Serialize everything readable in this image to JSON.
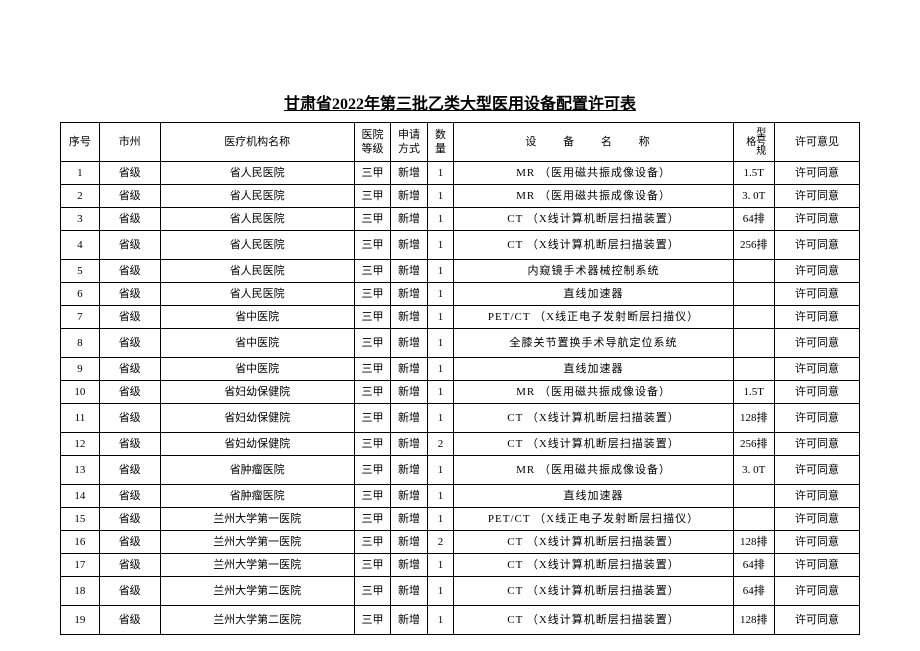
{
  "title": "甘肃省2022年第三批乙类大型医用设备配置许可表",
  "columns": {
    "seq": "序号",
    "city": "市州",
    "org": "医疗机构名称",
    "level": "医院等级",
    "apply": "申请方式",
    "qty": "数量",
    "device": "设 备 名 称",
    "spec": "型号规格",
    "opinion": "许可意见"
  },
  "rows": [
    {
      "seq": "1",
      "city": "省级",
      "org": "省人民医院",
      "level": "三甲",
      "apply": "新增",
      "qty": "1",
      "device": "MR （医用磁共振成像设备）",
      "spec": "1.5T",
      "opinion": "许可同意",
      "tall": false
    },
    {
      "seq": "2",
      "city": "省级",
      "org": "省人民医院",
      "level": "三甲",
      "apply": "新增",
      "qty": "1",
      "device": "MR （医用磁共振成像设备）",
      "spec": "3. 0T",
      "opinion": "许可同意",
      "tall": false
    },
    {
      "seq": "3",
      "city": "省级",
      "org": "省人民医院",
      "level": "三甲",
      "apply": "新增",
      "qty": "1",
      "device": "CT （X线计算机断层扫描装置）",
      "spec": "64排",
      "opinion": "许可同意",
      "tall": false
    },
    {
      "seq": "4",
      "city": "省级",
      "org": "省人民医院",
      "level": "三甲",
      "apply": "新增",
      "qty": "1",
      "device": "CT （X线计算机断层扫描装置）",
      "spec": "256排",
      "opinion": "许可同意",
      "tall": true
    },
    {
      "seq": "5",
      "city": "省级",
      "org": "省人民医院",
      "level": "三甲",
      "apply": "新增",
      "qty": "1",
      "device": "内窥镜手术器械控制系统",
      "spec": "",
      "opinion": "许可同意",
      "tall": false
    },
    {
      "seq": "6",
      "city": "省级",
      "org": "省人民医院",
      "level": "三甲",
      "apply": "新增",
      "qty": "1",
      "device": "直线加速器",
      "spec": "",
      "opinion": "许可同意",
      "tall": false
    },
    {
      "seq": "7",
      "city": "省级",
      "org": "省中医院",
      "level": "三甲",
      "apply": "新增",
      "qty": "1",
      "device": "PET/CT （X线正电子发射断层扫描仪）",
      "spec": "",
      "opinion": "许可同意",
      "tall": false
    },
    {
      "seq": "8",
      "city": "省级",
      "org": "省中医院",
      "level": "三甲",
      "apply": "新增",
      "qty": "1",
      "device": "全膝关节置换手术导航定位系统",
      "spec": "",
      "opinion": "许可同意",
      "tall": true
    },
    {
      "seq": "9",
      "city": "省级",
      "org": "省中医院",
      "level": "三甲",
      "apply": "新增",
      "qty": "1",
      "device": "直线加速器",
      "spec": "",
      "opinion": "许可同意",
      "tall": false
    },
    {
      "seq": "10",
      "city": "省级",
      "org": "省妇幼保健院",
      "level": "三甲",
      "apply": "新增",
      "qty": "1",
      "device": "MR （医用磁共振成像设备）",
      "spec": "1.5T",
      "opinion": "许可同意",
      "tall": false
    },
    {
      "seq": "11",
      "city": "省级",
      "org": "省妇幼保健院",
      "level": "三甲",
      "apply": "新增",
      "qty": "1",
      "device": "CT （X线计算机断层扫描装置）",
      "spec": "128排",
      "opinion": "许可同意",
      "tall": true
    },
    {
      "seq": "12",
      "city": "省级",
      "org": "省妇幼保健院",
      "level": "三甲",
      "apply": "新增",
      "qty": "2",
      "device": "CT （X线计算机断层扫描装置）",
      "spec": "256排",
      "opinion": "许可同意",
      "tall": false
    },
    {
      "seq": "13",
      "city": "省级",
      "org": "省肿瘤医院",
      "level": "三甲",
      "apply": "新增",
      "qty": "1",
      "device": "MR （医用磁共振成像设备）",
      "spec": "3. 0T",
      "opinion": "许可同意",
      "tall": true
    },
    {
      "seq": "14",
      "city": "省级",
      "org": "省肿瘤医院",
      "level": "三甲",
      "apply": "新增",
      "qty": "1",
      "device": "直线加速器",
      "spec": "",
      "opinion": "许可同意",
      "tall": false
    },
    {
      "seq": "15",
      "city": "省级",
      "org": "兰州大学第一医院",
      "level": "三甲",
      "apply": "新增",
      "qty": "1",
      "device": "PET/CT （X线正电子发射断层扫描仪）",
      "spec": "",
      "opinion": "许可同意",
      "tall": false
    },
    {
      "seq": "16",
      "city": "省级",
      "org": "兰州大学第一医院",
      "level": "三甲",
      "apply": "新增",
      "qty": "2",
      "device": "CT （X线计算机断层扫描装置）",
      "spec": "128排",
      "opinion": "许可同意",
      "tall": false
    },
    {
      "seq": "17",
      "city": "省级",
      "org": "兰州大学第一医院",
      "level": "三甲",
      "apply": "新增",
      "qty": "1",
      "device": "CT （X线计算机断层扫描装置）",
      "spec": "64排",
      "opinion": "许可同意",
      "tall": false
    },
    {
      "seq": "18",
      "city": "省级",
      "org": "兰州大学第二医院",
      "level": "三甲",
      "apply": "新增",
      "qty": "1",
      "device": "CT （X线计算机断层扫描装置）",
      "spec": "64排",
      "opinion": "许可同意",
      "tall": true
    },
    {
      "seq": "19",
      "city": "省级",
      "org": "兰州大学第二医院",
      "level": "三甲",
      "apply": "新增",
      "qty": "1",
      "device": "CT （X线计算机断层扫描装置）",
      "spec": "128排",
      "opinion": "许可同意",
      "tall": true
    }
  ]
}
